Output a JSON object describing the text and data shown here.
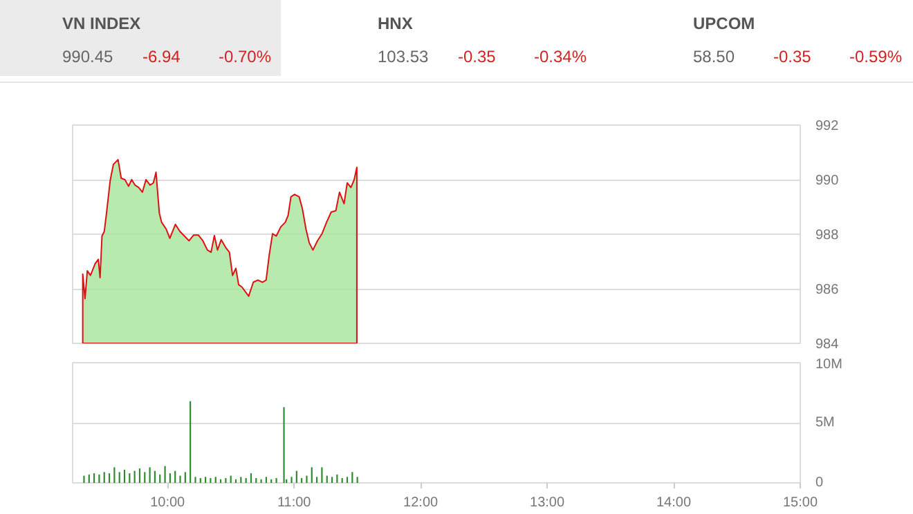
{
  "chart_data": [
    {
      "type": "other",
      "annotations": [
        "VN INDEX",
        "990.45",
        "-6.94",
        "-0.70%",
        "HNX",
        "103.53",
        "-0.35",
        "-0.34%",
        "UPCOM",
        "58.50",
        "-0.35",
        "-0.59%"
      ]
    },
    {
      "type": "area",
      "x": [
        9.33,
        9.348,
        9.366,
        9.391,
        9.428,
        9.453,
        9.467,
        9.482,
        9.5,
        9.518,
        9.547,
        9.572,
        9.609,
        9.634,
        9.663,
        9.692,
        9.717,
        9.743,
        9.772,
        9.801,
        9.83,
        9.862,
        9.888,
        9.909,
        9.935,
        9.953,
        9.989,
        10.018,
        10.062,
        10.098,
        10.134,
        10.17,
        10.207,
        10.243,
        10.279,
        10.315,
        10.344,
        10.37,
        10.395,
        10.424,
        10.46,
        10.489,
        10.514,
        10.54,
        10.562,
        10.587,
        10.641,
        10.678,
        10.714,
        10.75,
        10.779,
        10.804,
        10.83,
        10.859,
        10.895,
        10.931,
        10.953,
        10.975,
        11.004,
        11.04,
        11.065,
        11.094,
        11.12,
        11.149,
        11.185,
        11.221,
        11.257,
        11.293,
        11.33,
        11.359,
        11.395,
        11.42,
        11.449,
        11.475,
        11.496
      ],
      "series": [
        {
          "color": "#dd1111",
          "values": [
            986.54,
            985.64,
            986.66,
            986.49,
            986.92,
            987.08,
            986.41,
            987.93,
            988.1,
            988.78,
            989.97,
            990.56,
            990.73,
            990.05,
            990.0,
            989.76,
            990.0,
            989.8,
            989.71,
            989.54,
            990.0,
            989.8,
            989.88,
            990.27,
            988.78,
            988.44,
            988.19,
            987.85,
            988.36,
            988.1,
            987.93,
            987.76,
            987.97,
            987.97,
            987.76,
            987.42,
            987.34,
            987.95,
            987.42,
            987.8,
            987.51,
            987.34,
            986.49,
            986.75,
            986.15,
            986.07,
            985.73,
            986.24,
            986.32,
            986.24,
            986.32,
            987.25,
            988.02,
            987.93,
            988.27,
            988.44,
            988.69,
            989.37,
            989.46,
            989.37,
            988.95,
            988.19,
            987.68,
            987.42,
            987.76,
            988.02,
            988.44,
            988.81,
            988.86,
            989.54,
            989.12,
            989.88,
            989.71,
            990.0,
            990.45
          ]
        }
      ],
      "xlim": [
        9.25,
        15
      ],
      "ylim": [
        984,
        992
      ],
      "yticks": [
        984,
        986,
        988,
        990,
        992
      ],
      "grid": "y",
      "tick_labels": "y"
    },
    {
      "type": "bar",
      "x": [
        9.34,
        9.38,
        9.42,
        9.46,
        9.5,
        9.54,
        9.58,
        9.62,
        9.66,
        9.7,
        9.74,
        9.78,
        9.82,
        9.86,
        9.9,
        9.94,
        9.98,
        10.02,
        10.06,
        10.1,
        10.14,
        10.18,
        10.22,
        10.26,
        10.3,
        10.34,
        10.38,
        10.42,
        10.46,
        10.5,
        10.54,
        10.58,
        10.62,
        10.66,
        10.7,
        10.74,
        10.78,
        10.82,
        10.86,
        10.92,
        10.94,
        10.98,
        11.02,
        11.06,
        11.1,
        11.14,
        11.18,
        11.22,
        11.26,
        11.3,
        11.34,
        11.38,
        11.42,
        11.46,
        11.5
      ],
      "series": [
        {
          "color": "#2e8b2e",
          "values": [
            0.6,
            0.7,
            0.8,
            0.7,
            0.9,
            0.8,
            1.3,
            0.9,
            1.1,
            0.8,
            1.0,
            1.2,
            0.9,
            1.3,
            1.0,
            0.7,
            1.4,
            0.8,
            1.0,
            0.6,
            0.9,
            6.8,
            0.5,
            0.4,
            0.5,
            0.4,
            0.5,
            0.3,
            0.4,
            0.6,
            0.3,
            0.5,
            0.4,
            0.8,
            0.4,
            0.3,
            0.5,
            0.3,
            0.4,
            6.3,
            0.3,
            0.5,
            1.0,
            0.4,
            0.6,
            1.3,
            0.5,
            1.3,
            0.6,
            0.5,
            0.7,
            0.4,
            0.5,
            0.9,
            0.5
          ]
        }
      ],
      "xlim": [
        9.25,
        15
      ],
      "xticks": [
        {
          "value": 10,
          "label": "10:00"
        },
        {
          "value": 11,
          "label": "11:00"
        },
        {
          "value": 12,
          "label": "12:00"
        },
        {
          "value": 13,
          "label": "13:00"
        },
        {
          "value": 14,
          "label": "14:00"
        },
        {
          "value": 15,
          "label": "15:00"
        }
      ],
      "ylim": [
        0,
        10
      ],
      "yticks": [
        0,
        {
          "value": 5,
          "label": "5M"
        },
        {
          "value": 10,
          "label": "10M"
        }
      ],
      "grid": "y"
    }
  ]
}
